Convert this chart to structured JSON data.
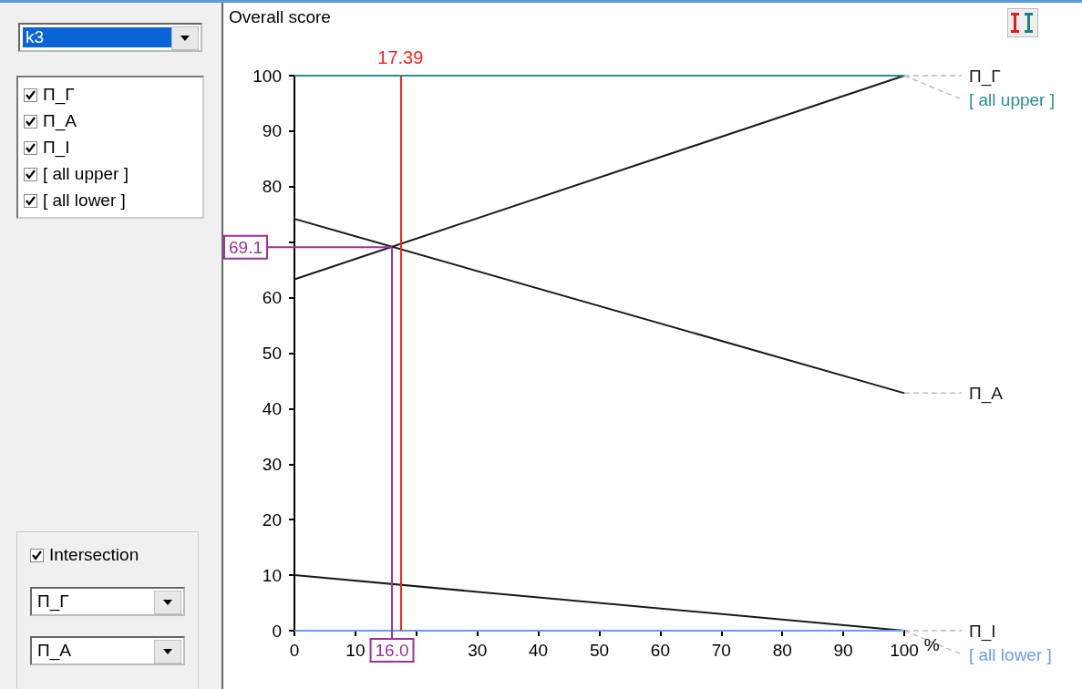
{
  "chart_data": {
    "type": "line",
    "ylabel": "Overall score",
    "xlabel": "%",
    "x": [
      0,
      100
    ],
    "series": [
      {
        "name": "П_Г",
        "color": "#1a1a1a",
        "values": [
          63.3,
          100
        ]
      },
      {
        "name": "П_А",
        "color": "#1a1a1a",
        "values": [
          74.2,
          42.8
        ]
      },
      {
        "name": "П_I",
        "color": "#1a1a1a",
        "values": [
          10,
          0
        ]
      },
      {
        "name": "[ all upper ]",
        "color": "#2a9090",
        "values": [
          100,
          100
        ]
      },
      {
        "name": "[ all lower ]",
        "color": "#6a9af5",
        "values": [
          0,
          0
        ]
      }
    ],
    "xlim": [
      0,
      100
    ],
    "xticks": [
      0,
      10,
      {
        "value": 20,
        "label": null
      },
      30,
      40,
      50,
      60,
      70,
      80,
      90,
      100
    ],
    "ylim": [
      0,
      100
    ],
    "yticks": [
      0,
      10,
      20,
      30,
      40,
      50,
      60,
      {
        "value": 70,
        "label": null
      },
      80,
      90,
      100
    ],
    "ref_lines": [
      {
        "axis": "x",
        "value": 17.39,
        "label": "17.39",
        "color": "#ff2020"
      }
    ],
    "annotations": [
      "k3",
      "Intersection",
      {
        "text": "69.1",
        "x": 16.0,
        "y": 69.1
      },
      {
        "text": "16.0",
        "x": 16.0,
        "y": 69.1
      }
    ],
    "grid": false,
    "legend": false,
    "marker": "none",
    "line_style": "solid"
  }
}
